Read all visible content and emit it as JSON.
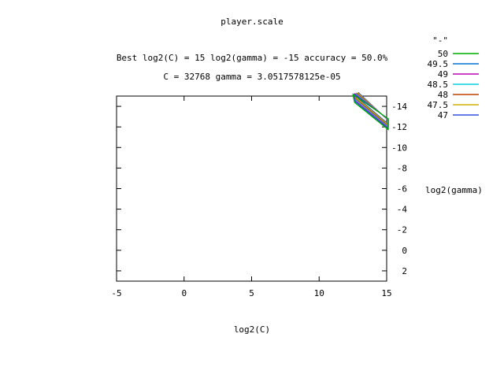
{
  "chart_data": {
    "type": "contour",
    "title": "player.scale",
    "subtitle_line1": "Best log2(C) = 15  log2(gamma) = -15  accuracy = 50.0%",
    "subtitle_line2": "C = 32768  gamma = 3.0517578125e-05",
    "xlabel": "log2(C)",
    "ylabel": "log2(gamma)",
    "xlim": [
      -5,
      15
    ],
    "ylim": [
      3,
      -15
    ],
    "y_inverted": true,
    "x_ticks": [
      -5,
      0,
      5,
      10,
      15
    ],
    "x_tick_labels": [
      "-5",
      "0",
      "5",
      "10",
      "15"
    ],
    "y_ticks": [
      -14,
      -12,
      -10,
      -8,
      -6,
      -4,
      -2,
      0,
      2
    ],
    "y_tick_labels": [
      "-14",
      "-12",
      "-10",
      "-8",
      "-6",
      "-4",
      "-2",
      "0",
      "2"
    ],
    "grid": false,
    "legend_position": "right",
    "legend_header": "\"-\"",
    "series": [
      {
        "name": "50",
        "color": "#00b000"
      },
      {
        "name": "49.5",
        "color": "#0070d0"
      },
      {
        "name": "49",
        "color": "#c000c0"
      },
      {
        "name": "48.5",
        "color": "#00d0e0"
      },
      {
        "name": "48",
        "color": "#c04000"
      },
      {
        "name": "47.5",
        "color": "#d0b000"
      },
      {
        "name": "47",
        "color": "#3050e0"
      }
    ],
    "contour_region": {
      "x_range": [
        12.5,
        15
      ],
      "y_range": [
        -15,
        -12.5
      ],
      "note": "diagonal band of nested contour lines near upper-right corner"
    }
  }
}
